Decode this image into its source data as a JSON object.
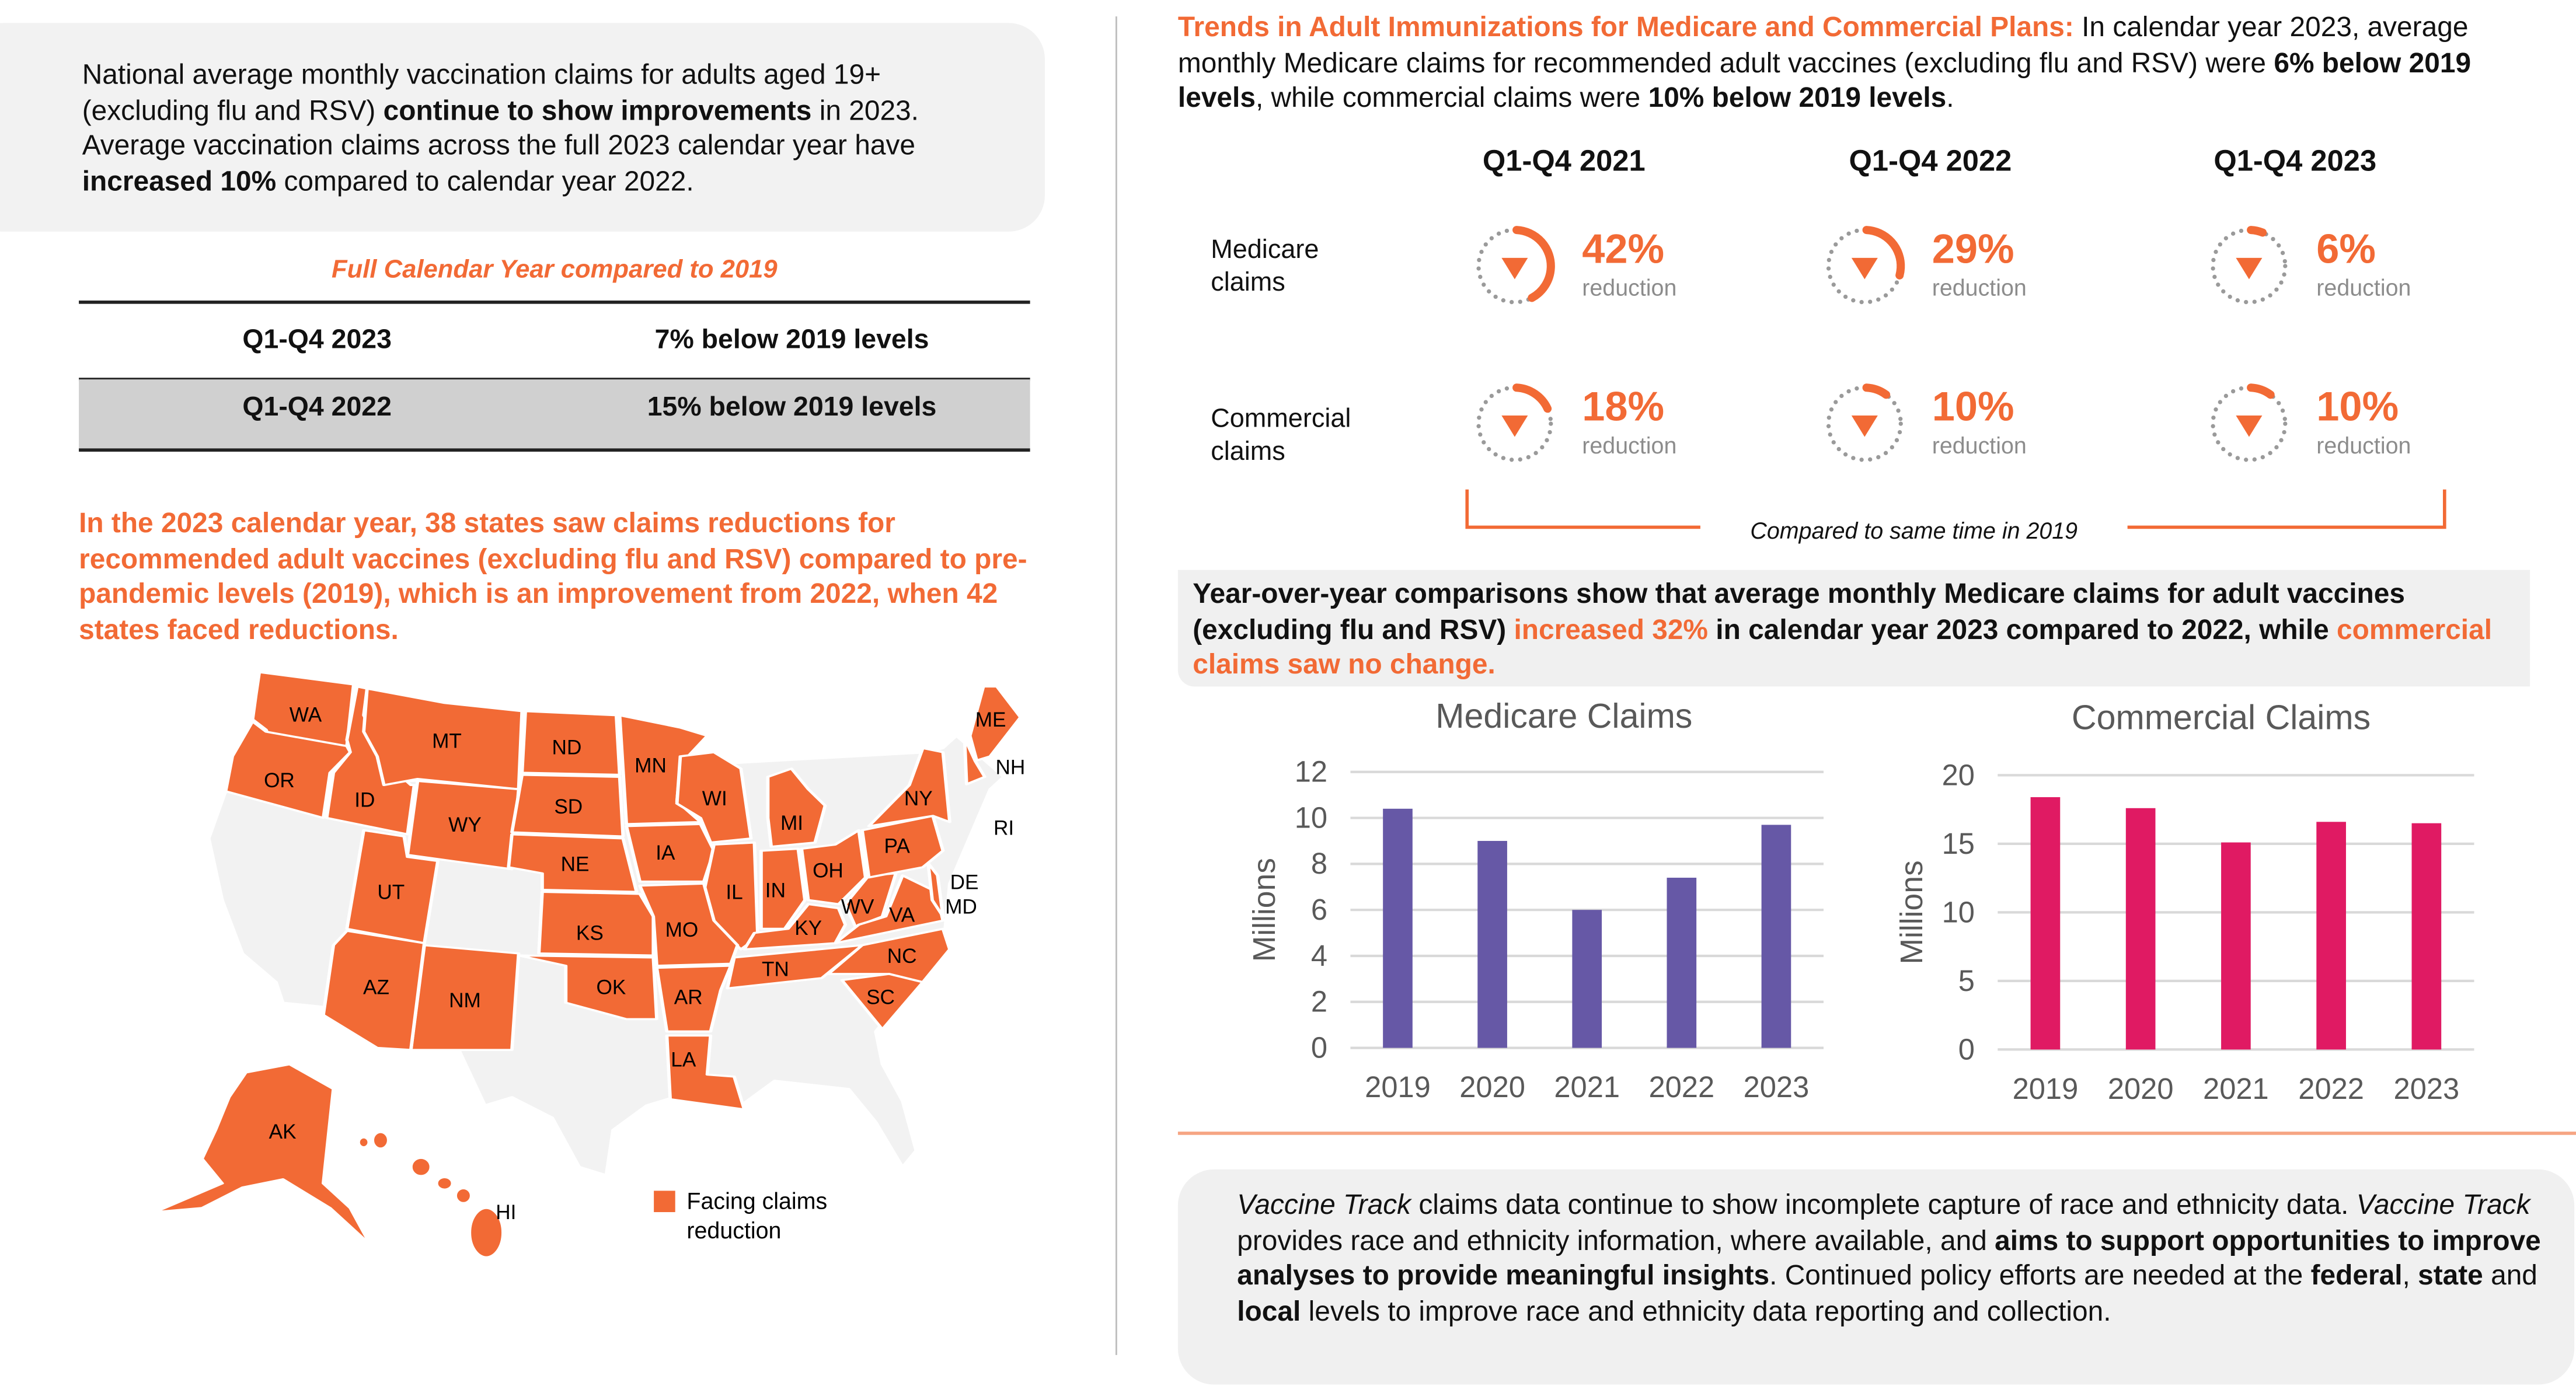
{
  "left": {
    "intro": [
      {
        "text": "National average monthly vaccination claims for adults aged 19+ (excluding flu and RSV) ",
        "style": ""
      },
      {
        "text": "continue to show improvements",
        "style": "b"
      },
      {
        "text": " in 2023. Average vaccination claims across the full 2023 calendar year have ",
        "style": ""
      },
      {
        "text": "increased 10%",
        "style": "b"
      },
      {
        "text": " compared to calendar year 2022.",
        "style": ""
      }
    ],
    "table": {
      "title": "Full Calendar Year compared to 2019",
      "rows": [
        {
          "period": "Q1-Q4 2023",
          "value": "7% below 2019 levels"
        },
        {
          "period": "Q1-Q4 2022",
          "value": "15% below 2019 levels"
        }
      ]
    },
    "states_paragraph": "In the 2023 calendar year, 38 states saw claims reductions for recommended adult vaccines (excluding flu and RSV) compared to pre-pandemic levels (2019), which is an improvement from 2022, when 42 states faced reductions.",
    "map": {
      "state_labels": [
        "WA",
        "OR",
        "ID",
        "MT",
        "WY",
        "ND",
        "SD",
        "NE",
        "MN",
        "WI",
        "IA",
        "IL",
        "MO",
        "KS",
        "OK",
        "AR",
        "LA",
        "MI",
        "IN",
        "OH",
        "KY",
        "TN",
        "WV",
        "VA",
        "PA",
        "NY",
        "NC",
        "SC",
        "UT",
        "AZ",
        "NM",
        "ME",
        "NH",
        "RI",
        "DE",
        "MD",
        "AK",
        "HI"
      ],
      "legend_label_line1": "Facing claims",
      "legend_label_line2": "reduction",
      "reduction_color": "#F26A35",
      "other_color": "#F2F2F2"
    }
  },
  "right": {
    "title": [
      {
        "text": "Trends in Adult Immunizations for Medicare and Commercial Plans:",
        "style": "ob"
      },
      {
        "text": " In calendar year 2023, average monthly Medicare claims for recommended adult vaccines (excluding flu and RSV) were ",
        "style": ""
      },
      {
        "text": "6% below 2019 levels",
        "style": "b"
      },
      {
        "text": ", while commercial claims were ",
        "style": ""
      },
      {
        "text": "10% below 2019 levels",
        "style": "b"
      },
      {
        "text": ".",
        "style": ""
      }
    ],
    "columns": [
      "Q1-Q4 2021",
      "Q1-Q4 2022",
      "Q1-Q4 2023"
    ],
    "rows": [
      {
        "label": "Medicare claims",
        "values": [
          {
            "pct": "42%",
            "fraction": 0.42,
            "caption": "reduction"
          },
          {
            "pct": "29%",
            "fraction": 0.29,
            "caption": "reduction"
          },
          {
            "pct": "6%",
            "fraction": 0.06,
            "caption": "reduction"
          }
        ]
      },
      {
        "label": "Commercial claims",
        "values": [
          {
            "pct": "18%",
            "fraction": 0.18,
            "caption": "reduction"
          },
          {
            "pct": "10%",
            "fraction": 0.1,
            "caption": "reduction"
          },
          {
            "pct": "10%",
            "fraction": 0.1,
            "caption": "reduction"
          }
        ]
      }
    ],
    "bracket_note": "Compared to same time in 2019",
    "yoy": [
      {
        "text": "Year-over-year comparisons show that average monthly Medicare claims for adult vaccines (excluding flu and RSV) ",
        "style": ""
      },
      {
        "text": "increased 32%",
        "style": "o"
      },
      {
        "text": " in calendar year 2023 compared to 2022, while ",
        "style": ""
      },
      {
        "text": "commercial claims saw no change.",
        "style": "o"
      }
    ],
    "bottom": [
      {
        "text": "Vaccine Track",
        "style": "i"
      },
      {
        "text": " claims data continue to show incomplete capture of race and ethnicity data. ",
        "style": ""
      },
      {
        "text": "Vaccine Track",
        "style": "i"
      },
      {
        "text": " provides race and ethnicity information, where available, and ",
        "style": ""
      },
      {
        "text": "aims to support opportunities to improve analyses to provide meaningful insights",
        "style": "b"
      },
      {
        "text": ". Continued policy efforts are needed at the ",
        "style": ""
      },
      {
        "text": "federal",
        "style": "b"
      },
      {
        "text": ", ",
        "style": ""
      },
      {
        "text": "state",
        "style": "b"
      },
      {
        "text": " and ",
        "style": ""
      },
      {
        "text": "local",
        "style": "b"
      },
      {
        "text": " levels to improve race and ethnicity data reporting and collection.",
        "style": ""
      }
    ]
  },
  "chart_data": [
    {
      "type": "bar",
      "title": "Medicare Claims",
      "ylabel": "Millions",
      "xlabel": "",
      "categories": [
        "2019",
        "2020",
        "2021",
        "2022",
        "2023"
      ],
      "values": [
        10.4,
        9.0,
        6.0,
        7.4,
        9.7
      ],
      "ylim": [
        0,
        12
      ],
      "yticks": [
        0,
        2,
        4,
        6,
        8,
        10,
        12
      ],
      "grid": true,
      "color": "#6658A6"
    },
    {
      "type": "bar",
      "title": "Commercial Claims",
      "ylabel": "Millions",
      "xlabel": "",
      "categories": [
        "2019",
        "2020",
        "2021",
        "2022",
        "2023"
      ],
      "values": [
        18.4,
        17.6,
        15.1,
        16.6,
        16.5
      ],
      "ylim": [
        0,
        20
      ],
      "yticks": [
        0,
        5,
        10,
        15,
        20
      ],
      "grid": true,
      "color": "#E01A63"
    }
  ]
}
